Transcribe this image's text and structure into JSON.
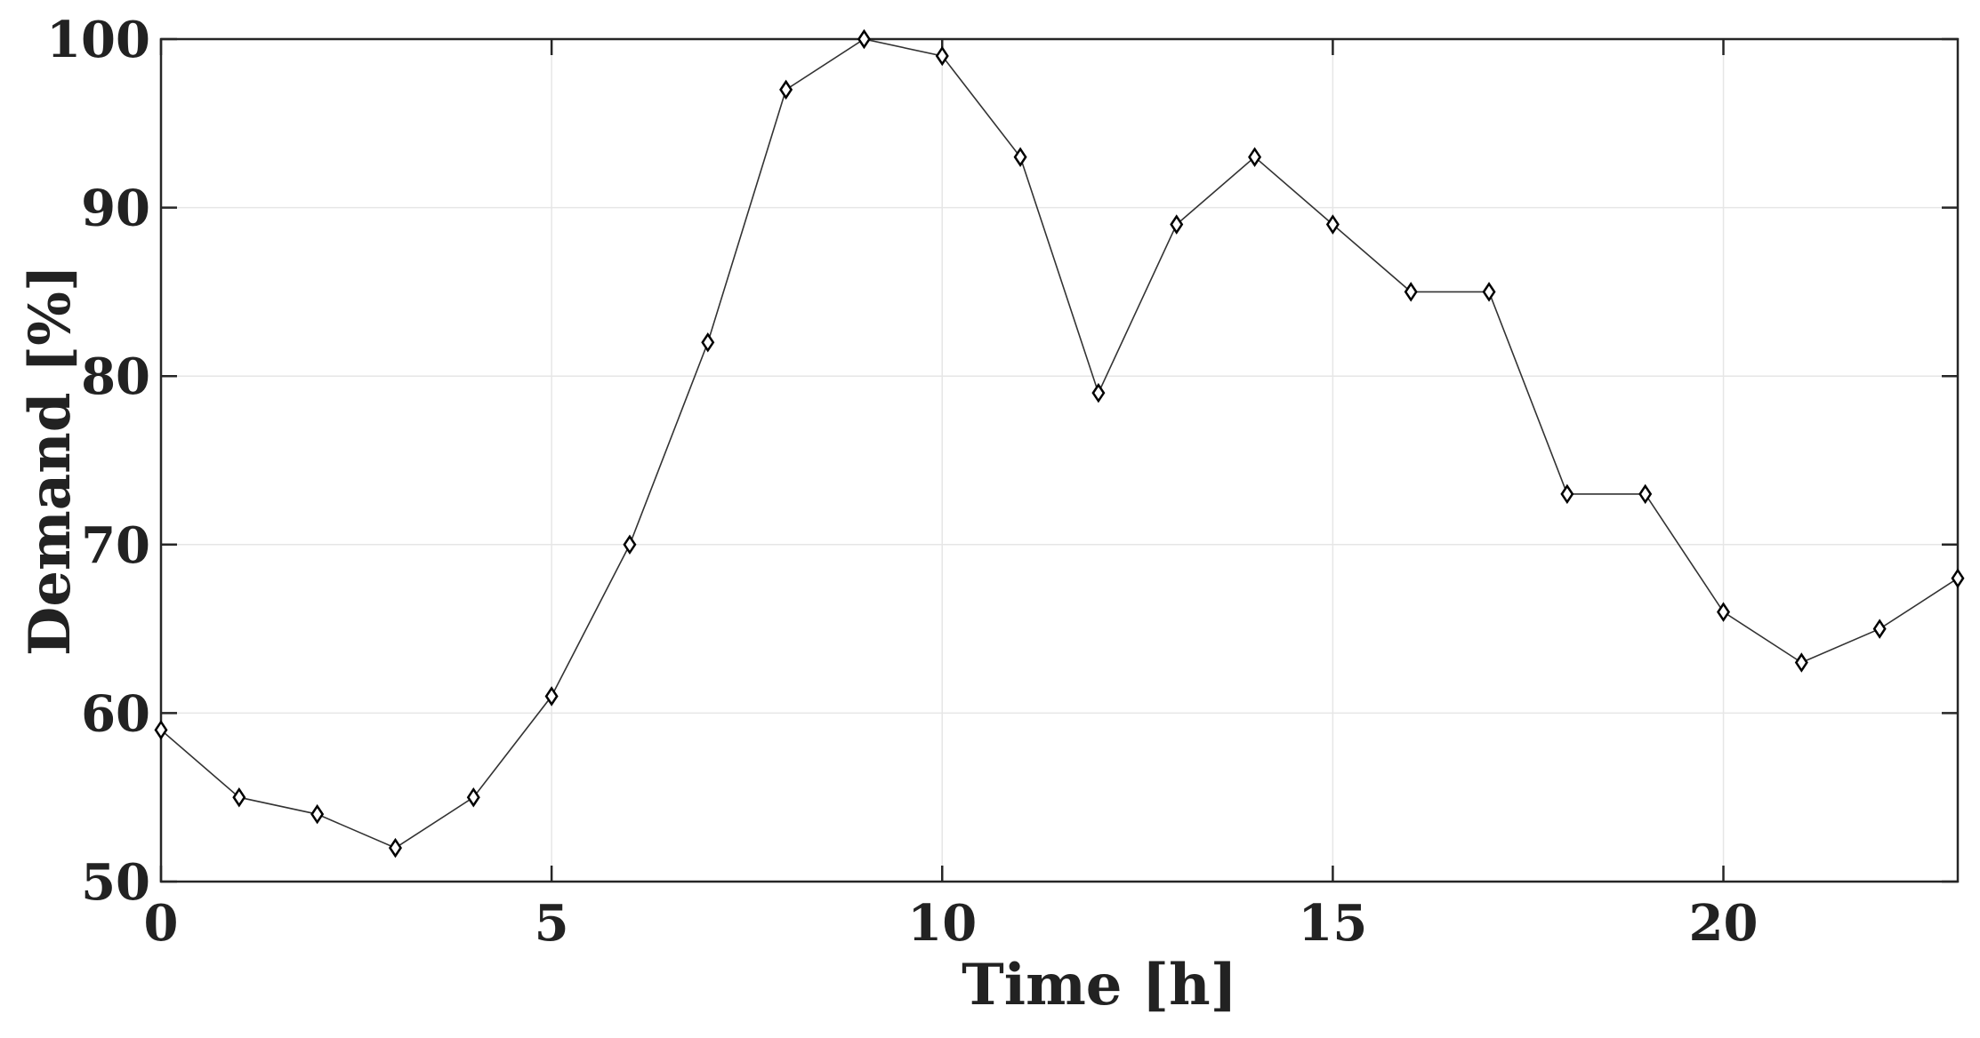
{
  "chart_data": {
    "type": "line",
    "xlabel": "Time [h]",
    "ylabel": "Demand [%]",
    "xlim": [
      0,
      23
    ],
    "ylim": [
      50,
      100
    ],
    "xticks": [
      0,
      5,
      10,
      15,
      20
    ],
    "yticks": [
      50,
      60,
      70,
      80,
      90,
      100
    ],
    "grid": true,
    "line_color": "#333333",
    "marker": "diamond",
    "series": [
      {
        "x": [
          0,
          1,
          2,
          3,
          4,
          5,
          6,
          7,
          8,
          9,
          10,
          11,
          12,
          13,
          14,
          15,
          16,
          17,
          18,
          19,
          20,
          21,
          22,
          23
        ],
        "values": [
          59,
          55,
          54,
          52,
          55,
          61,
          70,
          82,
          97,
          100,
          99,
          93,
          79,
          89,
          93,
          89,
          85,
          85,
          73,
          73,
          66,
          63,
          65,
          68
        ]
      }
    ]
  }
}
